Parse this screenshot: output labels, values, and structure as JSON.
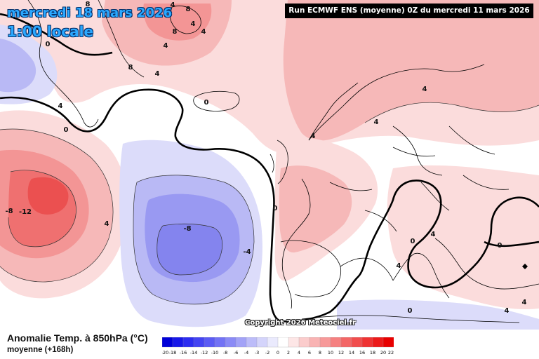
{
  "header": {
    "date_title": "mercredi 18 mars 2026",
    "time_label": "1:00 locale",
    "run_info": "Run ECMWF ENS (moyenne) 0Z du mercredi 11 mars 2026"
  },
  "footer": {
    "parameter_title": "Anomalie Temp. à 850hPa (°C)",
    "parameter_subtitle": "moyenne   (+168h)",
    "copyright": "Copyright 2026 Meteociel.fr"
  },
  "legend": {
    "ticks": [
      "-20",
      "-18",
      "-16",
      "-14",
      "-12",
      "-10",
      "-8",
      "-6",
      "-4",
      "-3",
      "-2",
      "0",
      "2",
      "4",
      "6",
      "8",
      "10",
      "12",
      "14",
      "16",
      "18",
      "20",
      "22"
    ],
    "colors": [
      "#0000d8",
      "#1818e8",
      "#2d2df0",
      "#4444f2",
      "#5b5bf4",
      "#7272f5",
      "#8a8af6",
      "#a2a2f7",
      "#bcbcf9",
      "#d4d4fb",
      "#eaeafd",
      "#ffffff",
      "#fde6e6",
      "#fbcccc",
      "#f9b3b3",
      "#f79999",
      "#f58080",
      "#f36666",
      "#f14d4d",
      "#ef3333",
      "#ec1a1a",
      "#e80000"
    ]
  },
  "map": {
    "contour_labels": [
      {
        "text": "8"
      },
      {
        "text": "4"
      },
      {
        "text": "8"
      },
      {
        "text": "4"
      },
      {
        "text": "8"
      },
      {
        "text": "4"
      },
      {
        "text": "4"
      },
      {
        "text": "0"
      },
      {
        "text": "8"
      },
      {
        "text": "4"
      },
      {
        "text": "4"
      },
      {
        "text": "0"
      },
      {
        "text": "0"
      },
      {
        "text": "4"
      },
      {
        "text": "0"
      },
      {
        "text": "-8"
      },
      {
        "text": "-12"
      },
      {
        "text": "4"
      },
      {
        "text": "-8"
      },
      {
        "text": "-4"
      },
      {
        "text": "0"
      },
      {
        "text": "4"
      },
      {
        "text": "4"
      },
      {
        "text": "4"
      },
      {
        "text": "4"
      },
      {
        "text": "0"
      },
      {
        "text": "0"
      },
      {
        "text": "4"
      },
      {
        "text": "4"
      }
    ],
    "colors": {
      "warm_light": "#fbdcdc",
      "warm_mid": "#f6b8b8",
      "warm_strong": "#f39595",
      "warm_core": "#ef7070",
      "warm_peak": "#eb5050",
      "cold_light": "#dcdcfa",
      "cold_mid": "#b9b9f5",
      "cold_strong": "#9999f2",
      "cold_core": "#8484ee",
      "zero_line": "#000000",
      "coast": "#000000"
    }
  }
}
